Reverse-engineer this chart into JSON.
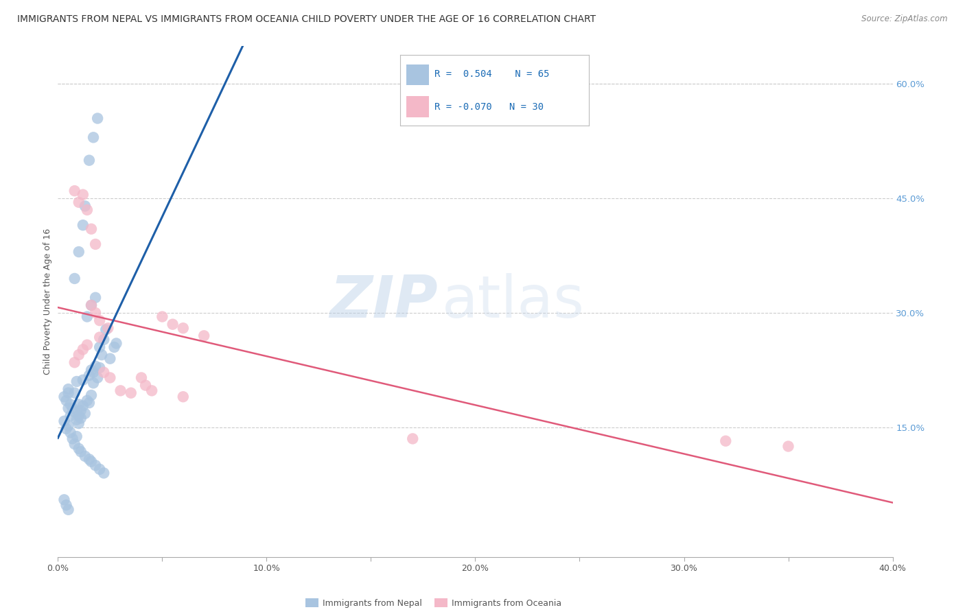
{
  "title": "IMMIGRANTS FROM NEPAL VS IMMIGRANTS FROM OCEANIA CHILD POVERTY UNDER THE AGE OF 16 CORRELATION CHART",
  "source": "Source: ZipAtlas.com",
  "ylabel": "Child Poverty Under the Age of 16",
  "xlim": [
    0.0,
    0.4
  ],
  "ylim": [
    -0.02,
    0.65
  ],
  "x_tick_labels": [
    "0.0%",
    "",
    "10.0%",
    "",
    "20.0%",
    "",
    "30.0%",
    "",
    "40.0%"
  ],
  "x_tick_vals": [
    0.0,
    0.05,
    0.1,
    0.15,
    0.2,
    0.25,
    0.3,
    0.35,
    0.4
  ],
  "y_tick_right_labels": [
    "15.0%",
    "30.0%",
    "45.0%",
    "60.0%"
  ],
  "y_tick_right_vals": [
    0.15,
    0.3,
    0.45,
    0.6
  ],
  "nepal_color": "#a8c4e0",
  "oceania_color": "#f4b8c8",
  "nepal_line_color": "#1e5fa8",
  "oceania_line_color": "#e05a7a",
  "nepal_scatter": [
    [
      0.005,
      0.2
    ],
    [
      0.005,
      0.195
    ],
    [
      0.006,
      0.18
    ],
    [
      0.007,
      0.175
    ],
    [
      0.004,
      0.185
    ],
    [
      0.008,
      0.17
    ],
    [
      0.009,
      0.21
    ],
    [
      0.01,
      0.165
    ],
    [
      0.003,
      0.19
    ],
    [
      0.005,
      0.175
    ],
    [
      0.006,
      0.165
    ],
    [
      0.008,
      0.195
    ],
    [
      0.01,
      0.18
    ],
    [
      0.011,
      0.172
    ],
    [
      0.012,
      0.178
    ],
    [
      0.013,
      0.168
    ],
    [
      0.015,
      0.182
    ],
    [
      0.014,
      0.185
    ],
    [
      0.016,
      0.192
    ],
    [
      0.012,
      0.212
    ],
    [
      0.015,
      0.218
    ],
    [
      0.016,
      0.225
    ],
    [
      0.018,
      0.23
    ],
    [
      0.017,
      0.222
    ],
    [
      0.02,
      0.255
    ],
    [
      0.021,
      0.245
    ],
    [
      0.022,
      0.265
    ],
    [
      0.023,
      0.278
    ],
    [
      0.008,
      0.345
    ],
    [
      0.01,
      0.38
    ],
    [
      0.012,
      0.415
    ],
    [
      0.013,
      0.44
    ],
    [
      0.015,
      0.5
    ],
    [
      0.017,
      0.53
    ],
    [
      0.019,
      0.555
    ],
    [
      0.016,
      0.31
    ],
    [
      0.018,
      0.32
    ],
    [
      0.014,
      0.295
    ],
    [
      0.025,
      0.24
    ],
    [
      0.027,
      0.255
    ],
    [
      0.028,
      0.26
    ],
    [
      0.02,
      0.228
    ],
    [
      0.019,
      0.215
    ],
    [
      0.017,
      0.208
    ],
    [
      0.003,
      0.158
    ],
    [
      0.004,
      0.148
    ],
    [
      0.005,
      0.152
    ],
    [
      0.006,
      0.143
    ],
    [
      0.007,
      0.135
    ],
    [
      0.008,
      0.128
    ],
    [
      0.009,
      0.138
    ],
    [
      0.01,
      0.122
    ],
    [
      0.011,
      0.118
    ],
    [
      0.013,
      0.112
    ],
    [
      0.015,
      0.108
    ],
    [
      0.016,
      0.105
    ],
    [
      0.018,
      0.1
    ],
    [
      0.02,
      0.095
    ],
    [
      0.022,
      0.09
    ],
    [
      0.01,
      0.155
    ],
    [
      0.009,
      0.16
    ],
    [
      0.011,
      0.162
    ],
    [
      0.003,
      0.055
    ],
    [
      0.004,
      0.048
    ],
    [
      0.005,
      0.042
    ]
  ],
  "oceania_scatter": [
    [
      0.008,
      0.46
    ],
    [
      0.01,
      0.445
    ],
    [
      0.012,
      0.455
    ],
    [
      0.014,
      0.435
    ],
    [
      0.016,
      0.41
    ],
    [
      0.018,
      0.39
    ],
    [
      0.016,
      0.31
    ],
    [
      0.018,
      0.3
    ],
    [
      0.02,
      0.29
    ],
    [
      0.05,
      0.295
    ],
    [
      0.055,
      0.285
    ],
    [
      0.06,
      0.28
    ],
    [
      0.07,
      0.27
    ],
    [
      0.024,
      0.28
    ],
    [
      0.02,
      0.268
    ],
    [
      0.008,
      0.235
    ],
    [
      0.01,
      0.245
    ],
    [
      0.012,
      0.252
    ],
    [
      0.014,
      0.258
    ],
    [
      0.04,
      0.215
    ],
    [
      0.042,
      0.205
    ],
    [
      0.045,
      0.198
    ],
    [
      0.022,
      0.222
    ],
    [
      0.025,
      0.215
    ],
    [
      0.03,
      0.198
    ],
    [
      0.035,
      0.195
    ],
    [
      0.06,
      0.19
    ],
    [
      0.17,
      0.135
    ],
    [
      0.32,
      0.132
    ],
    [
      0.35,
      0.125
    ]
  ],
  "watermark_zip": "ZIP",
  "watermark_atlas": "atlas",
  "background_color": "#ffffff",
  "grid_color": "#cccccc"
}
